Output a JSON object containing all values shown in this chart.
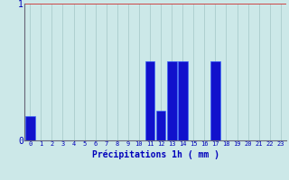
{
  "hours": [
    0,
    1,
    2,
    3,
    4,
    5,
    6,
    7,
    8,
    9,
    10,
    11,
    12,
    13,
    14,
    15,
    16,
    17,
    18,
    19,
    20,
    21,
    22,
    23
  ],
  "values": [
    0.18,
    0,
    0,
    0,
    0,
    0,
    0,
    0,
    0,
    0,
    0,
    0.58,
    0.22,
    0.58,
    0.58,
    0,
    0,
    0.58,
    0,
    0,
    0,
    0,
    0,
    0
  ],
  "bar_color": "#1111cc",
  "bar_edge_color": "#3366ff",
  "background_color": "#cce8e8",
  "grid_color_x": "#aacccc",
  "grid_color_y": "#cc4444",
  "axis_color": "#666677",
  "label_color": "#0000bb",
  "xlabel": "Précipitations 1h ( mm )",
  "ylim": [
    0,
    1.0
  ],
  "yticks": [
    0,
    1
  ],
  "num_hours": 24
}
